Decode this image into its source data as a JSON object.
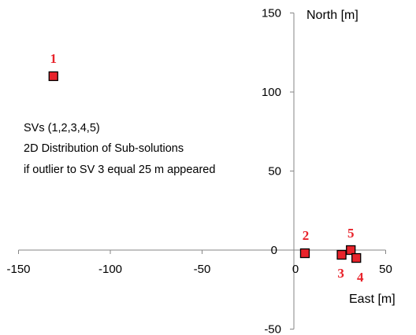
{
  "chart_data": {
    "type": "scatter",
    "title": "",
    "xlabel": "East [m]",
    "ylabel": "North [m]",
    "xlim": [
      -150,
      50
    ],
    "ylim": [
      -50,
      150
    ],
    "x_ticks": [
      -150,
      -100,
      -50,
      0,
      50
    ],
    "y_ticks": [
      -50,
      0,
      50,
      100,
      150
    ],
    "grid": false,
    "marker": "square",
    "colors": {
      "fill": "#e8232b",
      "edge": "#000000",
      "label": "#e8232b"
    },
    "annotation": [
      "SVs (1,2,3,4,5)",
      "2D Distribution of Sub-solutions",
      "if outlier  to SV 3 equal 25 m appeared"
    ],
    "points": [
      {
        "label": "1",
        "x": -131,
        "y": 110
      },
      {
        "label": "2",
        "x": 6,
        "y": -2
      },
      {
        "label": "3",
        "x": 26,
        "y": -3
      },
      {
        "label": "5",
        "x": 31,
        "y": 0
      },
      {
        "label": "4",
        "x": 34,
        "y": -5
      }
    ]
  }
}
